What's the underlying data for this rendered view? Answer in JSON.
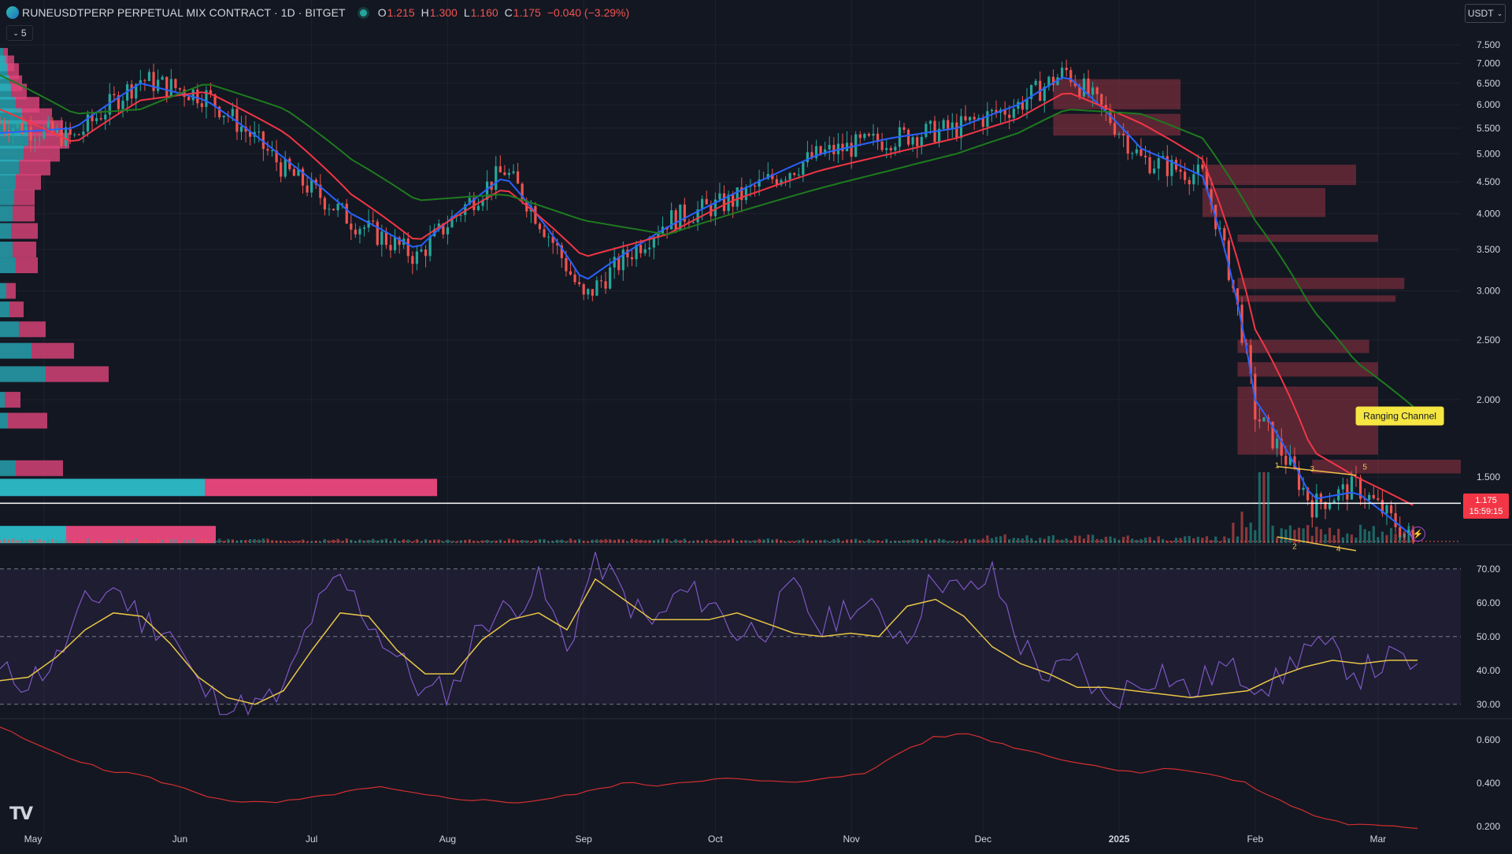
{
  "header": {
    "title": "RUNEUSDTPERP PERPETUAL MIX CONTRACT · 1D · BITGET",
    "open_label": "O",
    "open": "1.215",
    "high_label": "H",
    "high": "1.300",
    "low_label": "L",
    "low": "1.160",
    "close_label": "C",
    "close": "1.175",
    "change": "−0.040 (−3.29%)",
    "indicators_collapsed_count": "5",
    "currency": "USDT"
  },
  "price_tag": {
    "price": "1.175",
    "countdown": "15:59:15"
  },
  "annotation": "Ranging Channel",
  "colors": {
    "background": "#131722",
    "up": "#26a69a",
    "down": "#ef5350",
    "ema_fast": "#2962ff",
    "ema_mid": "#f23645",
    "ema_slow": "#1e7b1e",
    "rsi": "#7e57c2",
    "rsi_ma": "#e8c547",
    "bottom_line": "#d32f2f"
  },
  "chart_data": [
    {
      "type": "candlestick",
      "title": "RUNEUSDTPERP PERPETUAL MIX CONTRACT · 1D · BITGET",
      "yaxis": {
        "scale": "log",
        "ticks": [
          "7.500",
          "7.000",
          "6.500",
          "6.000",
          "5.500",
          "5.000",
          "4.500",
          "4.000",
          "3.500",
          "3.000",
          "2.500",
          "2.000",
          "1.500"
        ]
      },
      "xaxis": {
        "ticks": [
          "May",
          "Jun",
          "Jul",
          "Aug",
          "Sep",
          "Oct",
          "Nov",
          "Dec",
          "2025",
          "Feb",
          "Mar"
        ]
      },
      "x_dates": [
        "2024-04-21",
        "2024-05-08",
        "2024-05-23",
        "2024-06-07",
        "2024-06-25",
        "2024-07-10",
        "2024-07-25",
        "2024-08-14",
        "2024-09-01",
        "2024-09-20",
        "2024-10-05",
        "2024-10-25",
        "2024-11-10",
        "2024-11-25",
        "2024-12-09",
        "2024-12-20",
        "2025-01-06",
        "2025-01-20",
        "2025-02-01",
        "2025-02-14",
        "2025-02-24",
        "2025-03-09"
      ],
      "close_approx": [
        5.6,
        5.3,
        6.6,
        6.2,
        4.7,
        3.9,
        3.4,
        4.7,
        2.9,
        3.9,
        4.2,
        5.0,
        5.3,
        5.5,
        6.0,
        6.8,
        4.9,
        4.6,
        1.9,
        1.35,
        1.45,
        1.175
      ],
      "emas": [
        {
          "name": "EMA fast",
          "color": "#2962ff",
          "values": [
            5.4,
            5.5,
            6.5,
            6.1,
            4.9,
            4.0,
            3.5,
            4.6,
            3.1,
            3.8,
            4.3,
            5.0,
            5.3,
            5.5,
            6.0,
            6.7,
            5.1,
            4.6,
            2.0,
            1.38,
            1.42,
            1.2
          ]
        },
        {
          "name": "EMA mid",
          "color": "#f23645",
          "values": [
            5.9,
            5.2,
            6.1,
            6.3,
            5.4,
            4.3,
            3.6,
            4.4,
            3.4,
            3.7,
            4.2,
            4.7,
            5.0,
            5.3,
            5.7,
            6.3,
            5.6,
            4.9,
            2.6,
            1.65,
            1.5,
            1.35
          ]
        },
        {
          "name": "EMA slow",
          "color": "#1e7b1e",
          "values": [
            6.7,
            5.8,
            5.9,
            6.5,
            5.9,
            4.9,
            4.2,
            4.3,
            3.9,
            3.7,
            4.0,
            4.4,
            4.7,
            5.0,
            5.4,
            5.9,
            5.8,
            5.3,
            3.9,
            2.8,
            2.3,
            1.95
          ]
        }
      ],
      "horizontal_levels": [
        1.36,
        1.18
      ],
      "channel_points": [
        "1",
        "2",
        "3",
        "4",
        "5"
      ]
    },
    {
      "type": "line",
      "title": "RSI",
      "yaxis": {
        "ticks": [
          "70.00",
          "60.00",
          "50.00",
          "40.00",
          "30.00"
        ],
        "range": [
          26,
          76
        ]
      },
      "bands": [
        70,
        50,
        30
      ],
      "series": [
        {
          "color": "#7e57c2",
          "values": [
            39,
            37,
            43,
            59,
            65,
            55,
            52,
            35,
            29,
            29,
            33,
            56,
            67,
            55,
            44,
            33,
            35,
            55,
            58,
            66,
            46,
            74,
            62,
            53,
            63,
            61,
            51,
            53,
            64,
            52,
            60,
            56,
            50,
            69,
            62,
            68,
            48,
            38,
            42,
            30,
            36,
            40,
            33,
            41,
            38,
            36,
            47,
            45,
            39,
            43,
            42
          ]
        },
        {
          "color": "#e8c547",
          "values": [
            37,
            38,
            44,
            52,
            57,
            56,
            48,
            38,
            32,
            30,
            34,
            46,
            57,
            56,
            46,
            39,
            39,
            49,
            55,
            57,
            52,
            67,
            61,
            55,
            55,
            55,
            57,
            54,
            51,
            50,
            51,
            50,
            59,
            61,
            56,
            47,
            42,
            39,
            35,
            35,
            34,
            33,
            32,
            33,
            34,
            38,
            41,
            43,
            42,
            43,
            43
          ]
        }
      ]
    },
    {
      "type": "line",
      "yaxis": {
        "ticks": [
          "0.600",
          "0.400",
          "0.200"
        ],
        "range": [
          0.17,
          0.68
        ]
      },
      "series": [
        {
          "color": "#d32f2f",
          "values": [
            0.66,
            0.58,
            0.52,
            0.46,
            0.44,
            0.39,
            0.34,
            0.31,
            0.31,
            0.33,
            0.36,
            0.38,
            0.35,
            0.33,
            0.32,
            0.31,
            0.33,
            0.36,
            0.4,
            0.39,
            0.41,
            0.42,
            0.41,
            0.4,
            0.43,
            0.44,
            0.54,
            0.61,
            0.63,
            0.58,
            0.54,
            0.5,
            0.47,
            0.45,
            0.47,
            0.44,
            0.4,
            0.32,
            0.25,
            0.21,
            0.2,
            0.19
          ]
        }
      ]
    }
  ]
}
